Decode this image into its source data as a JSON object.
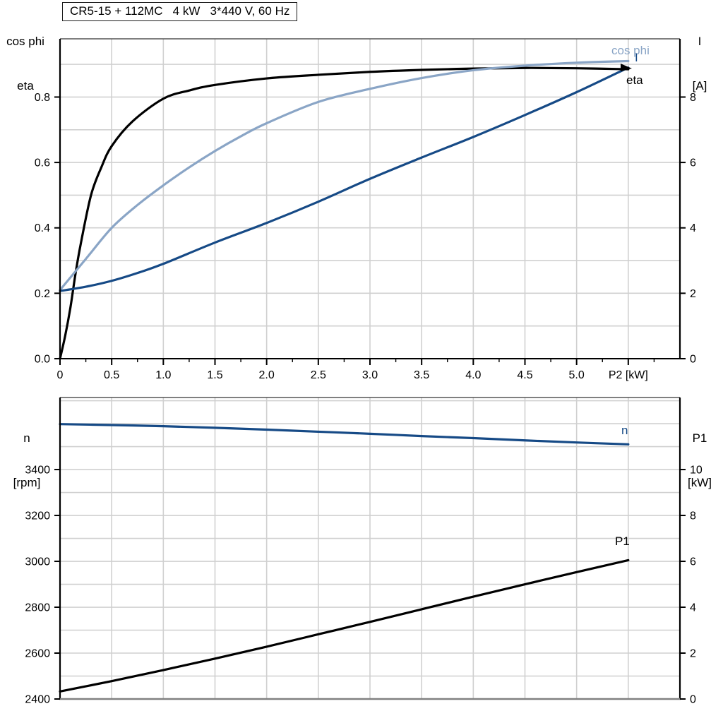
{
  "title_box": "CR5-15 + 112MC   4 kW   3*440 V, 60 Hz",
  "colors": {
    "eta": "#000000",
    "cos_phi": "#8AA5C6",
    "current": "#164A86",
    "speed": "#164A86",
    "p1": "#000000",
    "grid": "#d0d0d0",
    "frame": "#000000",
    "bottom_frame_bottom_edge": "#808080"
  },
  "chart_data": [
    {
      "type": "line",
      "title": "CR5-15 + 112MC   4 kW   3*440 V, 60 Hz",
      "xlabel": "P2 [kW]",
      "xlabel_position": 5.5,
      "left_axis_title_lines": [
        "cos phi",
        "eta"
      ],
      "right_axis_title_lines": [
        "I",
        "[A]"
      ],
      "xlim": [
        0,
        6.0
      ],
      "ylim_left": [
        0,
        0.978
      ],
      "ylim_right": [
        0,
        9.78
      ],
      "grid": "on",
      "x_grid_step": 0.5,
      "y_grid_step_left": 0.1,
      "x_minor_tick_step": 0.25,
      "x_ticks": [
        0,
        0.5,
        1.0,
        1.5,
        2.0,
        2.5,
        3.0,
        3.5,
        4.0,
        4.5,
        5.0
      ],
      "x_tick_labels": [
        "0",
        "0.5",
        "1.0",
        "1.5",
        "2.0",
        "2.5",
        "3.0",
        "3.5",
        "4.0",
        "4.5",
        "5.0"
      ],
      "y_ticks_left": [
        0,
        0.2,
        0.4,
        0.6,
        0.8
      ],
      "y_tick_labels_left": [
        "0.0",
        "0.2",
        "0.4",
        "0.6",
        "0.8"
      ],
      "y_ticks_right": [
        0,
        2,
        4,
        6,
        8
      ],
      "y_tick_labels_right": [
        "0",
        "2",
        "4",
        "6",
        "8"
      ],
      "series": [
        {
          "name": "eta",
          "axis": "left",
          "color": "#000000",
          "x": [
            0,
            0.05,
            0.1,
            0.15,
            0.2,
            0.3,
            0.4,
            0.5,
            0.7,
            1.0,
            1.25,
            1.5,
            2.0,
            2.5,
            3.0,
            3.5,
            4.0,
            4.5,
            5.0,
            5.5
          ],
          "y": [
            0,
            0.07,
            0.155,
            0.26,
            0.35,
            0.5,
            0.585,
            0.65,
            0.725,
            0.795,
            0.82,
            0.837,
            0.857,
            0.868,
            0.877,
            0.883,
            0.887,
            0.889,
            0.888,
            0.885
          ]
        },
        {
          "name": "cos phi",
          "axis": "left",
          "color": "#8AA5C6",
          "x": [
            0,
            0.25,
            0.5,
            0.75,
            1.0,
            1.25,
            1.5,
            1.75,
            2.0,
            2.5,
            3.0,
            3.5,
            4.0,
            4.5,
            5.0,
            5.5
          ],
          "y": [
            0.21,
            0.305,
            0.4,
            0.47,
            0.53,
            0.585,
            0.635,
            0.68,
            0.72,
            0.785,
            0.825,
            0.858,
            0.882,
            0.896,
            0.905,
            0.91
          ]
        },
        {
          "name": "I",
          "axis": "right",
          "color": "#164A86",
          "x": [
            0,
            0.25,
            0.5,
            0.75,
            1.0,
            1.5,
            2.0,
            2.5,
            3.0,
            3.5,
            4.0,
            4.5,
            5.0,
            5.5
          ],
          "y": [
            2.07,
            2.2,
            2.38,
            2.62,
            2.9,
            3.55,
            4.15,
            4.8,
            5.5,
            6.15,
            6.78,
            7.45,
            8.15,
            8.9
          ]
        }
      ]
    },
    {
      "type": "line",
      "left_axis_title_lines": [
        "n",
        "[rpm]"
      ],
      "right_axis_title_lines": [
        "P1",
        "[kW]"
      ],
      "xlim": [
        0,
        6.0
      ],
      "ylim_left": [
        2400,
        3714
      ],
      "ylim_right": [
        0,
        13.14
      ],
      "grid": "on",
      "x_grid_step": 0.5,
      "y_grid_step_left": 100,
      "y_ticks_left": [
        2400,
        2600,
        2800,
        3000,
        3200,
        3400
      ],
      "y_tick_labels_left": [
        "2400",
        "2600",
        "2800",
        "3000",
        "3200",
        "3400"
      ],
      "y_ticks_right": [
        0,
        2,
        4,
        6,
        8,
        10
      ],
      "y_tick_labels_right": [
        "0",
        "2",
        "4",
        "6",
        "8",
        "10"
      ],
      "series": [
        {
          "name": "n",
          "axis": "left",
          "color": "#164A86",
          "x": [
            0,
            0.5,
            1.0,
            1.5,
            2.0,
            2.5,
            3.0,
            3.5,
            4.0,
            4.5,
            5.0,
            5.5
          ],
          "y": [
            3598,
            3594,
            3589,
            3582,
            3574,
            3565,
            3556,
            3546,
            3537,
            3527,
            3518,
            3510
          ]
        },
        {
          "name": "P1",
          "axis": "right",
          "color": "#000000",
          "x": [
            0,
            0.5,
            1.0,
            1.5,
            2.0,
            2.5,
            3.0,
            3.5,
            4.0,
            4.5,
            5.0,
            5.5
          ],
          "y": [
            0.33,
            0.78,
            1.26,
            1.76,
            2.28,
            2.82,
            3.36,
            3.91,
            4.46,
            5.0,
            5.53,
            6.05
          ]
        }
      ]
    }
  ]
}
